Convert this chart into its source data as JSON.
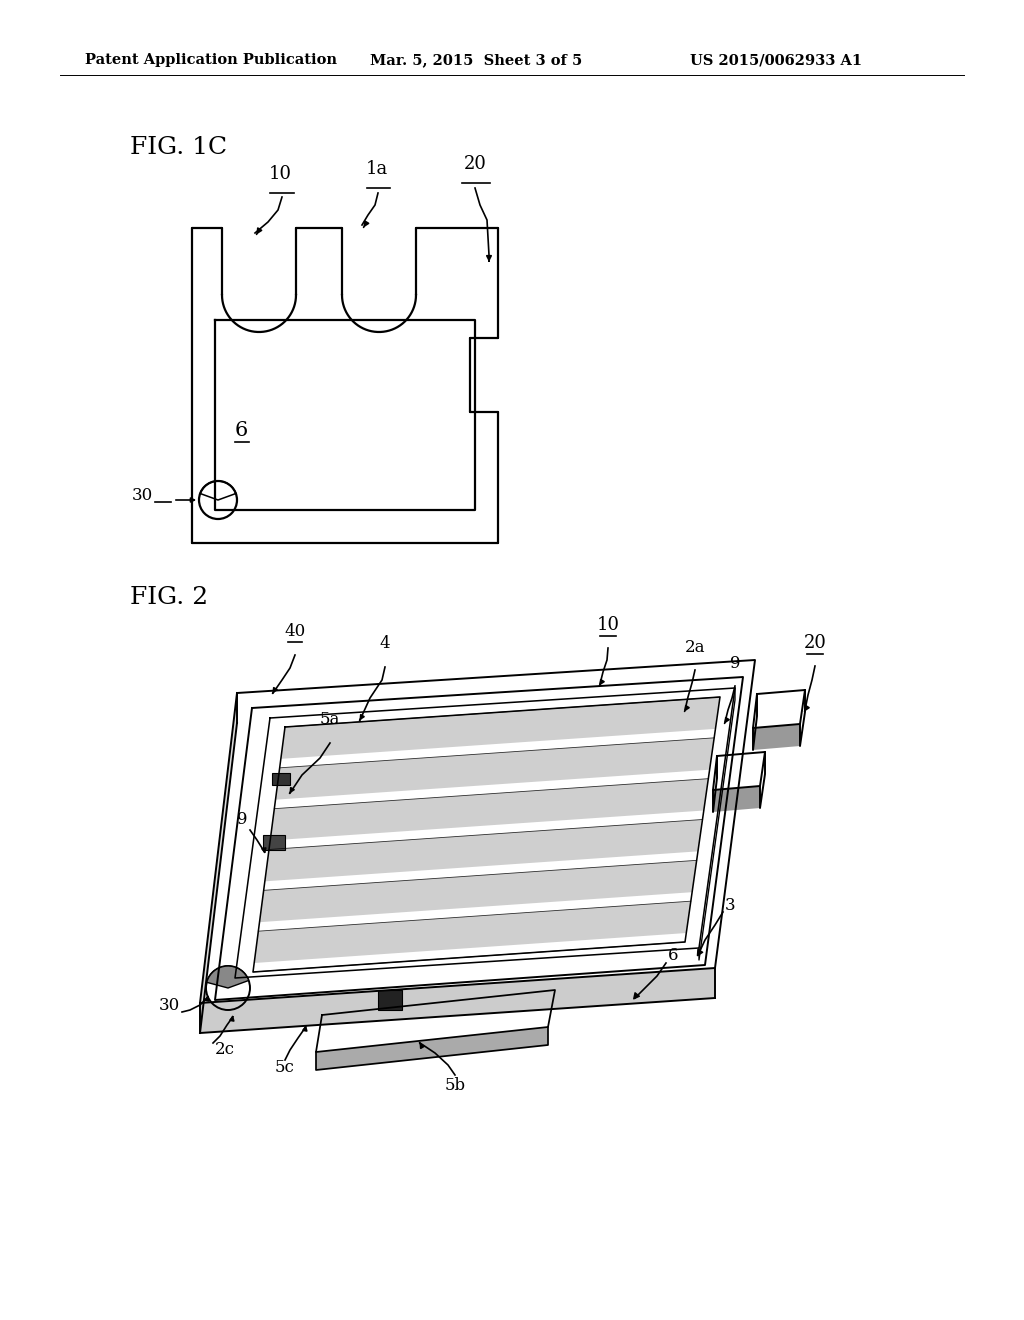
{
  "bg_color": "#ffffff",
  "header_left": "Patent Application Publication",
  "header_mid": "Mar. 5, 2015  Sheet 3 of 5",
  "header_right": "US 2015/0062933 A1",
  "fig1c_label": "FIG. 1C",
  "fig2_label": "FIG. 2",
  "line_color": "#000000"
}
